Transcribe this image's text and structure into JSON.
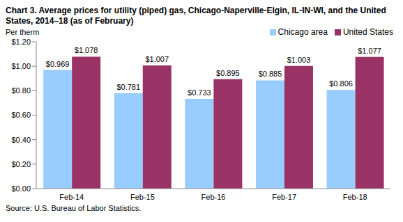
{
  "chart_data": {
    "type": "bar",
    "title": "Chart 3. Average prices for utility (piped) gas, Chicago-Naperville-Elgin, IL-IN-WI, and the United States, 2014–18 (as of February)",
    "y_label": "Per therm",
    "source": "Source: U.S. Bureau of Labor Statistics.",
    "categories": [
      "Feb-14",
      "Feb-15",
      "Feb-16",
      "Feb-17",
      "Feb-18"
    ],
    "series": [
      {
        "name": "Chicago area",
        "color": "#99ccff",
        "values": [
          0.969,
          0.781,
          0.733,
          0.885,
          0.806
        ],
        "value_labels": [
          "$0.969",
          "$0.781",
          "$0.733",
          "$0.885",
          "$0.806"
        ]
      },
      {
        "name": "United States",
        "color": "#993366",
        "values": [
          1.078,
          1.007,
          0.895,
          1.003,
          1.077
        ],
        "value_labels": [
          "$1.078",
          "$1.007",
          "$0.895",
          "$1.003",
          "$1.077"
        ]
      }
    ],
    "ylim": [
      0,
      1.2
    ],
    "yticks": [
      {
        "value": 0,
        "label": "$0.00"
      },
      {
        "value": 0.2,
        "label": "$0.20"
      },
      {
        "value": 0.4,
        "label": "$0.40"
      },
      {
        "value": 0.6,
        "label": "$0.60"
      },
      {
        "value": 0.8,
        "label": "$0.80"
      },
      {
        "value": 1.0,
        "label": "$1.00"
      },
      {
        "value": 1.2,
        "label": "$1.20"
      }
    ],
    "grid": false,
    "legend": "top-right",
    "data_labels": true
  }
}
